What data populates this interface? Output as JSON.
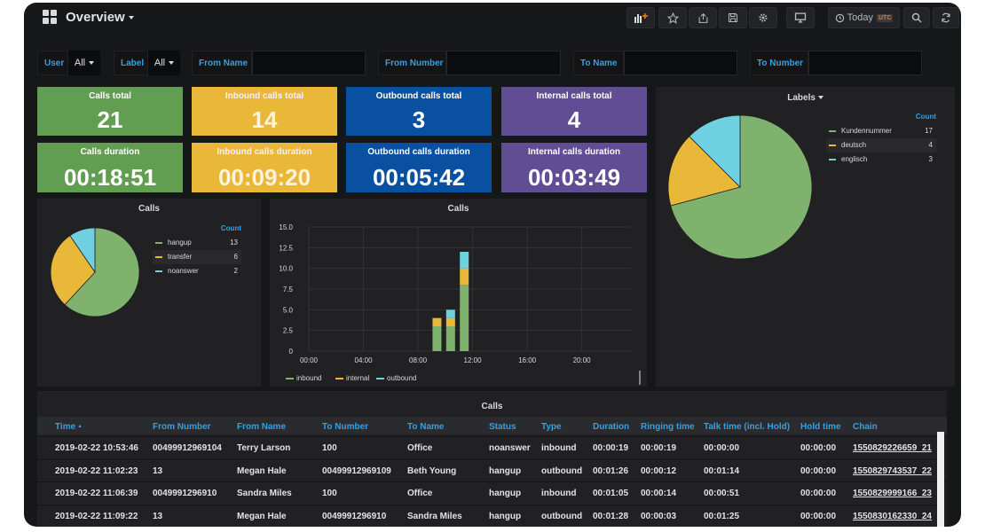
{
  "topbar": {
    "title": "Overview",
    "time_label": "Today",
    "tz": "UTC"
  },
  "variables": {
    "user": {
      "label": "User",
      "value": "All"
    },
    "label": {
      "label": "Label",
      "value": "All"
    },
    "from_name": {
      "label": "From Name",
      "value": ""
    },
    "from_number": {
      "label": "From Number",
      "value": ""
    },
    "to_name": {
      "label": "To Name",
      "value": ""
    },
    "to_number": {
      "label": "To Number",
      "value": ""
    }
  },
  "stats": [
    {
      "title": "Calls total",
      "value": "21",
      "color": "#629e51"
    },
    {
      "title": "Inbound calls total",
      "value": "14",
      "color": "#eab839"
    },
    {
      "title": "Outbound calls total",
      "value": "3",
      "color": "#0a50a1"
    },
    {
      "title": "Internal calls total",
      "value": "4",
      "color": "#614d93"
    },
    {
      "title": "Calls duration",
      "value": "00:18:51",
      "color": "#629e51"
    },
    {
      "title": "Inbound calls duration",
      "value": "00:09:20",
      "color": "#eab839"
    },
    {
      "title": "Outbound calls duration",
      "value": "00:05:42",
      "color": "#0a50a1"
    },
    {
      "title": "Internal calls duration",
      "value": "00:03:49",
      "color": "#614d93"
    }
  ],
  "labels_panel": {
    "title": "Labels",
    "count_header": "Count",
    "items": [
      {
        "name": "Kundennummer",
        "count": "17",
        "color": "#7eb26d"
      },
      {
        "name": "deutsch",
        "count": "4",
        "color": "#eab839"
      },
      {
        "name": "englisch",
        "count": "3",
        "color": "#6ed0e0"
      }
    ]
  },
  "calls_pie": {
    "title": "Calls",
    "count_header": "Count",
    "items": [
      {
        "name": "hangup",
        "count": "13",
        "color": "#7eb26d"
      },
      {
        "name": "transfer",
        "count": "6",
        "color": "#eab839"
      },
      {
        "name": "noanswer",
        "count": "2",
        "color": "#6ed0e0"
      }
    ]
  },
  "chart_data": {
    "type": "bar",
    "title": "Calls",
    "x_ticks": [
      "00:00",
      "04:00",
      "08:00",
      "12:00",
      "16:00",
      "20:00"
    ],
    "y_ticks": [
      "0",
      "2.5",
      "5.0",
      "7.5",
      "10.0",
      "12.5",
      "15.0"
    ],
    "ylim": [
      0,
      15
    ],
    "bars": [
      {
        "hour": 9,
        "inbound": 3,
        "internal": 1,
        "outbound": 0
      },
      {
        "hour": 10,
        "inbound": 3,
        "internal": 1,
        "outbound": 1
      },
      {
        "hour": 11,
        "inbound": 8,
        "internal": 2,
        "outbound": 2
      }
    ],
    "series": [
      {
        "name": "inbound",
        "color": "#7eb26d"
      },
      {
        "name": "internal",
        "color": "#eab839"
      },
      {
        "name": "outbound",
        "color": "#6ed0e0"
      }
    ]
  },
  "table": {
    "title": "Calls",
    "columns": [
      "Time",
      "From Number",
      "From Name",
      "To Number",
      "To Name",
      "Status",
      "Type",
      "Duration",
      "Ringing time",
      "Talk time (incl. Hold)",
      "Hold time",
      "Chain"
    ],
    "rows": [
      [
        "2019-02-22 10:53:46",
        "00499912969104",
        "Terry Larson",
        "100",
        "Office",
        "noanswer",
        "inbound",
        "00:00:19",
        "00:00:19",
        "00:00:00",
        "00:00:00",
        "1550829226659_21"
      ],
      [
        "2019-02-22 11:02:23",
        "13",
        "Megan Hale",
        "00499912969109",
        "Beth Young",
        "hangup",
        "outbound",
        "00:01:26",
        "00:00:12",
        "00:01:14",
        "00:00:00",
        "1550829743537_22"
      ],
      [
        "2019-02-22 11:06:39",
        "0049991296910",
        "Sandra Miles",
        "100",
        "Office",
        "hangup",
        "inbound",
        "00:01:05",
        "00:00:14",
        "00:00:51",
        "00:00:00",
        "1550829999166_23"
      ],
      [
        "2019-02-22 11:09:22",
        "13",
        "Megan Hale",
        "0049991296910",
        "Sandra Miles",
        "hangup",
        "outbound",
        "00:01:28",
        "00:00:03",
        "00:01:25",
        "00:00:00",
        "1550830162330_24"
      ]
    ]
  }
}
